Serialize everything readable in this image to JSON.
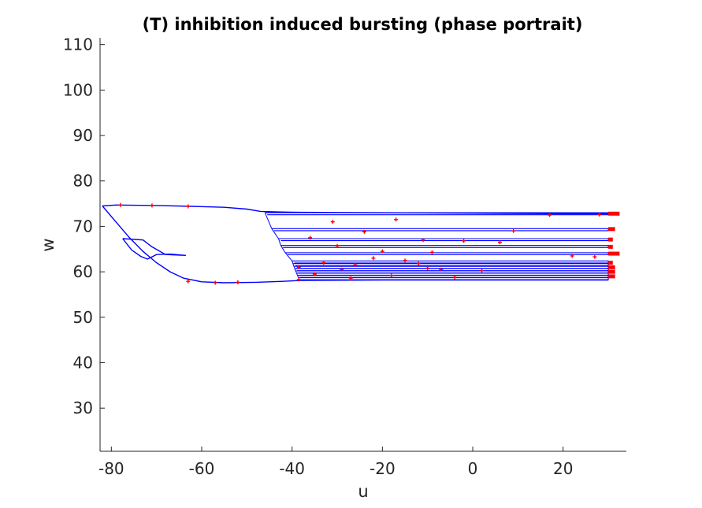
{
  "chart_data": {
    "type": "line",
    "title": "(T) inhibition induced bursting (phase portrait)",
    "xlabel": "u",
    "ylabel": "w",
    "xlim": [
      -82.5,
      34
    ],
    "ylim": [
      20.5,
      111.5
    ],
    "xticks": [
      -80,
      -60,
      -40,
      -20,
      0,
      20
    ],
    "yticks": [
      30,
      40,
      50,
      60,
      70,
      80,
      90,
      100,
      110
    ],
    "grid": false,
    "line_color": "#0000ff",
    "marker_color": "#ff0000",
    "series": [
      {
        "role": "initial-hyperpolarization",
        "points": [
          [
            -82,
            74.5
          ],
          [
            -79,
            74.7
          ],
          [
            -70,
            74.6
          ],
          [
            -62,
            74.4
          ],
          [
            -55,
            74.2
          ],
          [
            -50,
            73.8
          ],
          [
            -47,
            73.3
          ],
          [
            -44,
            73.2
          ],
          [
            -40,
            73.1
          ],
          [
            -20,
            73.0
          ],
          [
            0,
            72.9
          ],
          [
            20,
            72.8
          ],
          [
            28,
            72.8
          ],
          [
            30,
            72.8
          ]
        ]
      },
      {
        "role": "inhibition-branch",
        "points": [
          [
            -82,
            74.5
          ],
          [
            -79,
            71.0
          ],
          [
            -76,
            67.5
          ],
          [
            -73,
            64.5
          ],
          [
            -70,
            62.0
          ],
          [
            -67,
            60.0
          ],
          [
            -64,
            58.6
          ],
          [
            -60,
            57.8
          ],
          [
            -55,
            57.6
          ],
          [
            -48,
            57.7
          ],
          [
            -42,
            57.9
          ],
          [
            -38,
            58.1
          ],
          [
            -20,
            58.2
          ],
          [
            0,
            58.2
          ],
          [
            20,
            58.2
          ],
          [
            30,
            58.2
          ]
        ]
      },
      {
        "role": "transient-loop",
        "points": [
          [
            -77.5,
            67.3
          ],
          [
            -73,
            67.0
          ],
          [
            -71,
            65.5
          ],
          [
            -68,
            63.8
          ],
          [
            -63.5,
            63.6
          ],
          [
            -67,
            63.9
          ],
          [
            -70,
            63.8
          ],
          [
            -72,
            62.8
          ],
          [
            -73.5,
            63.4
          ],
          [
            -75.5,
            64.8
          ],
          [
            -77.5,
            67.3
          ]
        ]
      }
    ],
    "burst_lines": [
      {
        "w": 73.0,
        "u_start": -46,
        "u_end": 30
      },
      {
        "w": 69.5,
        "u_start": -44.5,
        "u_end": 30
      },
      {
        "w": 67.3,
        "u_start": -43,
        "u_end": 30
      },
      {
        "w": 65.8,
        "u_start": -42.5,
        "u_end": 30
      },
      {
        "w": 64.2,
        "u_start": -41.5,
        "u_end": 30
      },
      {
        "w": 62.4,
        "u_start": -40,
        "u_end": 30
      },
      {
        "w": 61.8,
        "u_start": -39.8,
        "u_end": 30
      },
      {
        "w": 61.2,
        "u_start": -39.6,
        "u_end": 30
      },
      {
        "w": 60.7,
        "u_start": -39.4,
        "u_end": 30
      },
      {
        "w": 60.2,
        "u_start": -39.2,
        "u_end": 30
      },
      {
        "w": 59.7,
        "u_start": -39.0,
        "u_end": 30
      },
      {
        "w": 59.2,
        "u_start": -38.8,
        "u_end": 30
      },
      {
        "w": 58.7,
        "u_start": -38.6,
        "u_end": 30
      }
    ],
    "spike_tips": [
      {
        "w": 72.8,
        "u": 32.5
      },
      {
        "w": 69.4,
        "u": 31.5
      },
      {
        "w": 67.1,
        "u": 31.0
      },
      {
        "w": 65.5,
        "u": 31.0
      },
      {
        "w": 64.0,
        "u": 32.5
      },
      {
        "w": 62.0,
        "u": 31.0
      },
      {
        "w": 61.0,
        "u": 31.5
      },
      {
        "w": 60.0,
        "u": 31.5
      },
      {
        "w": 59.0,
        "u": 31.5
      }
    ],
    "markers": [
      [
        -78,
        74.7
      ],
      [
        -71,
        74.6
      ],
      [
        -63,
        74.4
      ],
      [
        -63,
        57.9
      ],
      [
        -57,
        57.6
      ],
      [
        -52,
        57.7
      ],
      [
        -38.5,
        58.3
      ],
      [
        -31,
        71.0
      ],
      [
        -24,
        68.8
      ],
      [
        -17,
        71.5
      ],
      [
        -11,
        67.0
      ],
      [
        -7,
        60.5
      ],
      [
        -4,
        58.8
      ],
      [
        2,
        60.2
      ],
      [
        6,
        66.5
      ],
      [
        9,
        69.0
      ],
      [
        17,
        72.5
      ],
      [
        22,
        63.5
      ],
      [
        27,
        63.3
      ],
      [
        28,
        72.6
      ],
      [
        -33,
        62.0
      ],
      [
        -29,
        60.5
      ],
      [
        -26,
        61.5
      ],
      [
        -22,
        63.0
      ],
      [
        -15,
        62.5
      ],
      [
        -12,
        61.8
      ],
      [
        -10,
        60.8
      ],
      [
        -36,
        67.5
      ],
      [
        -30,
        65.7
      ],
      [
        -20,
        64.5
      ],
      [
        -9,
        64.3
      ],
      [
        -2,
        66.8
      ],
      [
        -38.5,
        61.0
      ],
      [
        -35,
        59.5
      ],
      [
        -27,
        58.6
      ],
      [
        -18,
        59.2
      ]
    ]
  }
}
